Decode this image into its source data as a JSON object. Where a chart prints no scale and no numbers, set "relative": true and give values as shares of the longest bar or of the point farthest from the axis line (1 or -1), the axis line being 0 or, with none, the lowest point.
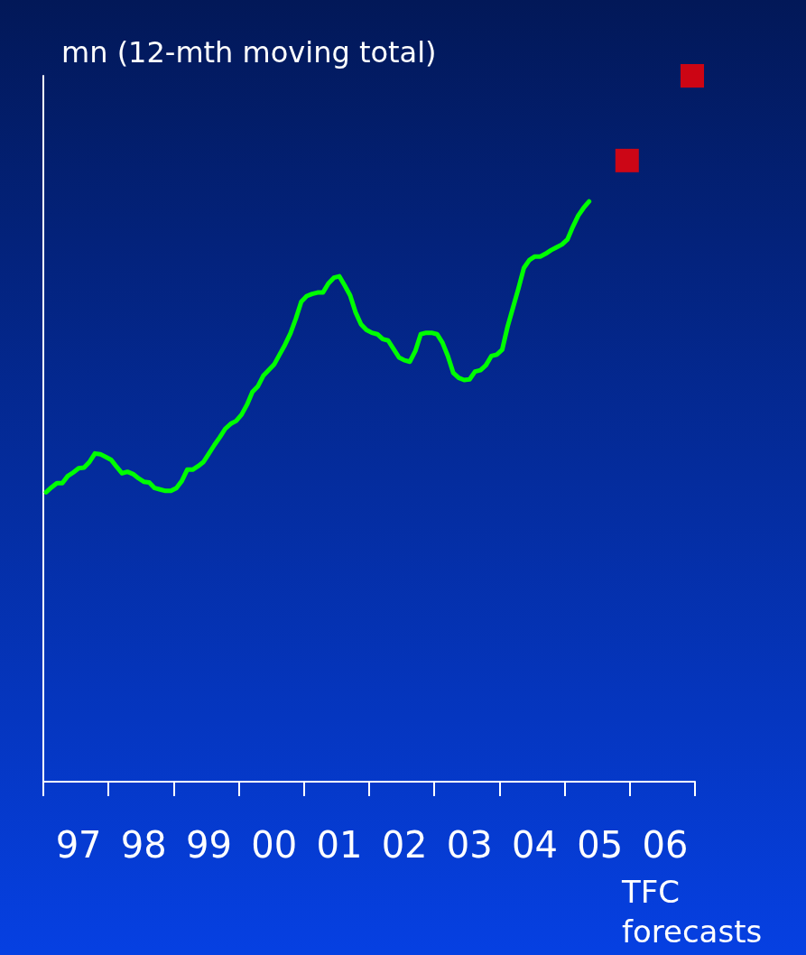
{
  "chart_data": {
    "type": "line",
    "ylabel": "mn (12-mth moving total)",
    "relative": true,
    "grid": false,
    "categories": [
      null,
      null,
      null,
      null,
      null,
      null,
      "97",
      null,
      null,
      null,
      null,
      null,
      null,
      null,
      null,
      null,
      null,
      null,
      "98",
      null,
      null,
      null,
      null,
      null,
      null,
      null,
      null,
      null,
      null,
      null,
      "99",
      null,
      null,
      null,
      null,
      null,
      null,
      null,
      null,
      null,
      null,
      null,
      "00",
      null,
      null,
      null,
      null,
      null,
      null,
      null,
      null,
      null,
      null,
      null,
      "01",
      null,
      null,
      null,
      null,
      null,
      null,
      null,
      null,
      null,
      null,
      null,
      "02",
      null,
      null,
      null,
      null,
      null,
      null,
      null,
      null,
      null,
      null,
      null,
      "03",
      null,
      null,
      null,
      null,
      null,
      null,
      null,
      null,
      null,
      null,
      null,
      "04",
      null,
      null,
      null,
      null,
      null,
      null,
      null,
      null,
      null,
      null,
      null,
      "05",
      null,
      null,
      null,
      null,
      null,
      null,
      null,
      null,
      null,
      null,
      null,
      "06",
      null,
      null,
      null,
      null,
      null
    ],
    "series": [
      {
        "color": "#00ff00",
        "marker": "none",
        "values": [
          0.41,
          0.417,
          0.423,
          0.423,
          0.433,
          0.438,
          0.444,
          0.445,
          0.453,
          0.465,
          0.464,
          0.46,
          0.456,
          0.446,
          0.437,
          0.439,
          0.436,
          0.43,
          0.425,
          0.424,
          0.416,
          0.414,
          0.412,
          0.412,
          0.416,
          0.426,
          0.442,
          0.442,
          0.447,
          0.453,
          0.465,
          0.477,
          0.488,
          0.5,
          0.507,
          0.511,
          0.52,
          0.534,
          0.552,
          0.56,
          0.575,
          0.583,
          0.591,
          0.605,
          0.619,
          0.635,
          0.656,
          0.68,
          0.688,
          0.691,
          0.693,
          0.693,
          0.706,
          0.714,
          0.716,
          0.703,
          0.689,
          0.665,
          0.648,
          0.64,
          0.636,
          0.634,
          0.627,
          0.625,
          0.613,
          0.601,
          0.597,
          0.595,
          0.61,
          0.634,
          0.636,
          0.636,
          0.634,
          0.622,
          0.603,
          0.579,
          0.572,
          0.569,
          0.57,
          0.581,
          0.583,
          0.59,
          0.603,
          0.605,
          0.612,
          0.645,
          0.672,
          0.699,
          0.728,
          0.739,
          0.744,
          0.744,
          0.748,
          0.753,
          0.757,
          0.761,
          0.768,
          0.786,
          0.802,
          0.813,
          0.822,
          null,
          null,
          null,
          null,
          null,
          null,
          null,
          null,
          null,
          null,
          null,
          null,
          null,
          null,
          null,
          null,
          null,
          null,
          null
        ]
      },
      {
        "type": "scatter",
        "color": "#ff0000",
        "marker": "square",
        "values": [
          null,
          null,
          null,
          null,
          null,
          null,
          null,
          null,
          null,
          null,
          null,
          null,
          null,
          null,
          null,
          null,
          null,
          null,
          null,
          null,
          null,
          null,
          null,
          null,
          null,
          null,
          null,
          null,
          null,
          null,
          null,
          null,
          null,
          null,
          null,
          null,
          null,
          null,
          null,
          null,
          null,
          null,
          null,
          null,
          null,
          null,
          null,
          null,
          null,
          null,
          null,
          null,
          null,
          null,
          null,
          null,
          null,
          null,
          null,
          null,
          null,
          null,
          null,
          null,
          null,
          null,
          null,
          null,
          null,
          null,
          null,
          null,
          null,
          null,
          null,
          null,
          null,
          null,
          null,
          null,
          null,
          null,
          null,
          null,
          null,
          null,
          null,
          null,
          null,
          null,
          null,
          null,
          null,
          null,
          null,
          null,
          null,
          null,
          null,
          null,
          null,
          null,
          null,
          null,
          null,
          null,
          null,
          0.88,
          null,
          null,
          null,
          null,
          null,
          null,
          null,
          null,
          null,
          null,
          null,
          1
        ]
      }
    ],
    "annotations": [
      "TFC forecasts"
    ]
  }
}
